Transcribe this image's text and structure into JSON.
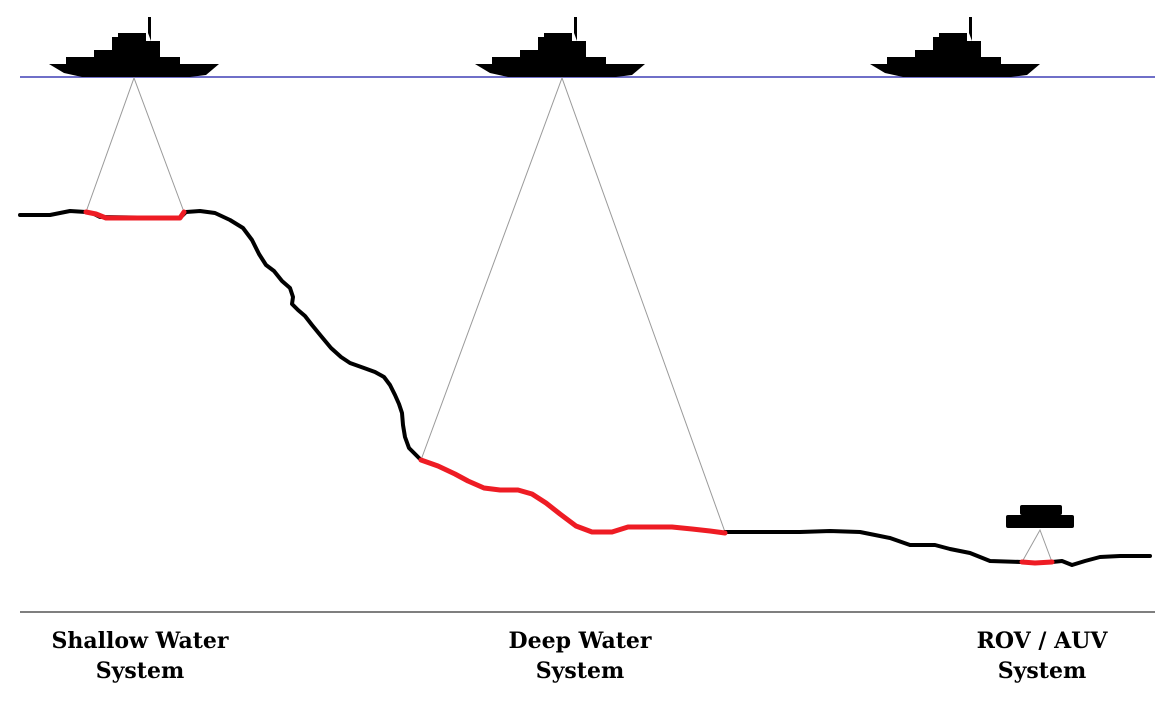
{
  "colors": {
    "sea_surface": "#6f6fc8",
    "seafloor": "#000000",
    "swath": "#ee1c24",
    "beam": "#9a9a9a",
    "baseline": "#555555"
  },
  "systems": [
    {
      "id": "shallow",
      "line1": "Shallow Water",
      "line2": "System"
    },
    {
      "id": "deep",
      "line1": "Deep Water",
      "line2": "System"
    },
    {
      "id": "rov",
      "line1": "ROV / AUV",
      "line2": "System"
    }
  ]
}
